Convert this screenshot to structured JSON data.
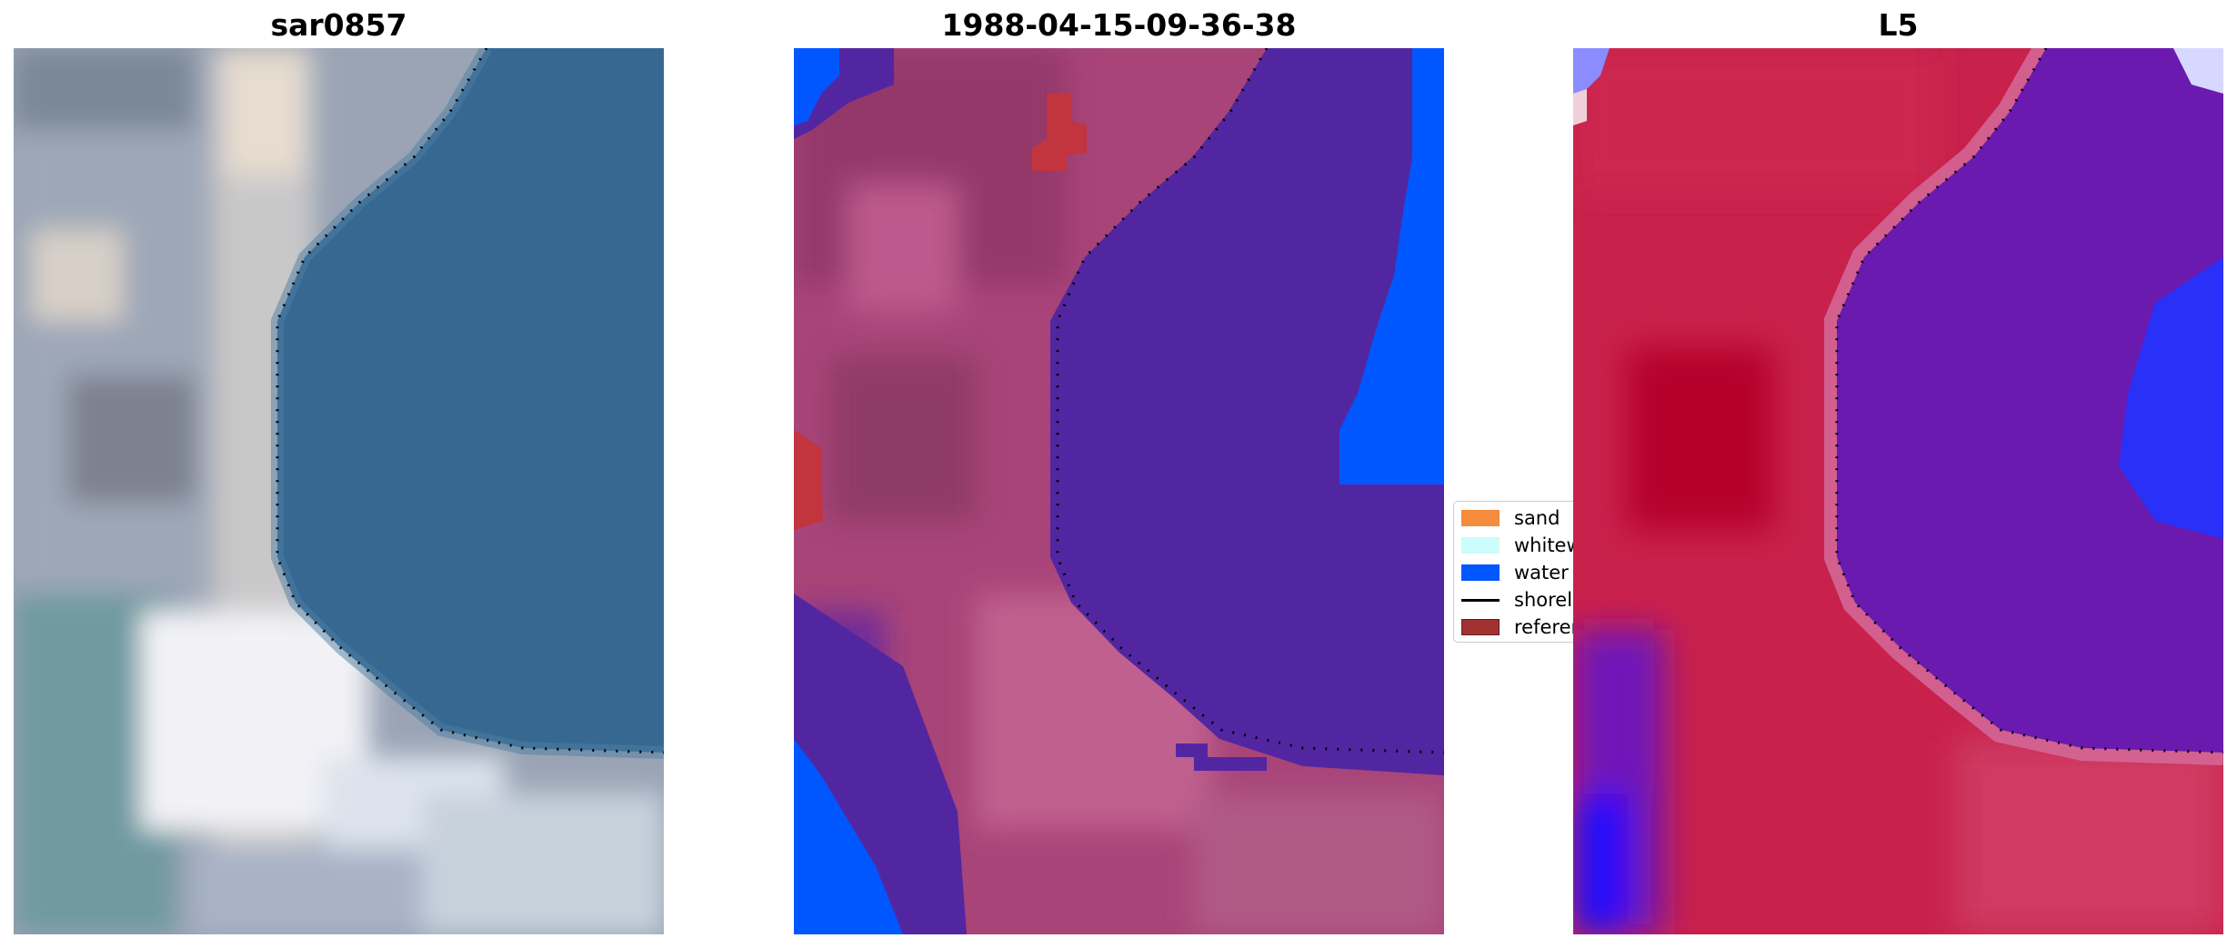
{
  "panels": [
    {
      "title": "sar0857"
    },
    {
      "title": "1988-04-15-09-36-38"
    },
    {
      "title": "L5"
    }
  ],
  "legend": {
    "items": [
      {
        "label": "sand",
        "color": "#f58b3b",
        "kind": "patch"
      },
      {
        "label": "whitewater",
        "color": "#ccfcfc",
        "kind": "patch"
      },
      {
        "label": "water",
        "color": "#0057ff",
        "kind": "patch"
      },
      {
        "label": "shoreline",
        "color": "#000000",
        "kind": "line"
      },
      {
        "label": "reference",
        "color": "#a03232",
        "kind": "patch"
      }
    ]
  },
  "colors": {
    "rgb_water": "#356892",
    "rgb_land": "#a8b0bf",
    "rgb_bright": "#e4e4ec",
    "class_water": "#5326a1",
    "class_bright_water": "#0057ff",
    "class_land": "#a84478",
    "class_reference": "#c2343e",
    "index_land": "#c8214b",
    "index_water": "#6b1ab0",
    "index_blue": "#2233ff"
  }
}
